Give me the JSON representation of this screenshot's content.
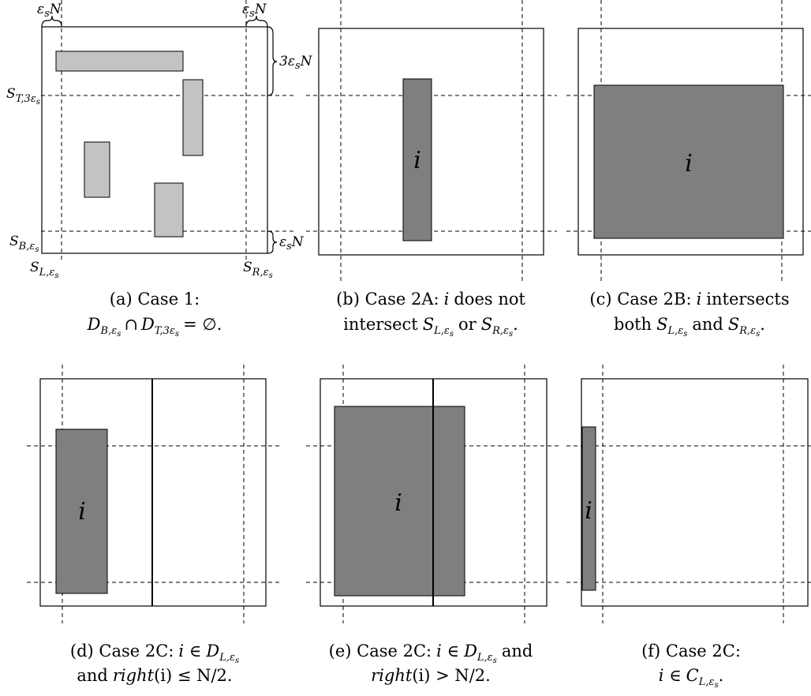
{
  "panel_a": {
    "label_eps_n_left": "ε",
    "label_eps_n_left_n": "N",
    "label_eps_n_right": "ε",
    "label_eps_n_right_n": "N",
    "label_3eps_n": "3ε",
    "label_3eps_n_n": "N",
    "label_eps_n_bottom": "ε",
    "label_eps_n_bottom_n": "N",
    "label_s_t": "S",
    "label_s_t_sub": "T,3ε",
    "label_s_b": "S",
    "label_s_b_sub": "B,ε",
    "label_s_l": "S",
    "label_s_l_sub": "L,ε",
    "label_s_r": "S",
    "label_s_r_sub": "R,ε",
    "sub_s": "s",
    "caption_line1": "(a) Case 1:",
    "caption_line2_d1": "D",
    "caption_line2_d1_sub": "B,ε",
    "caption_line2_cap": "∩",
    "caption_line2_d2": "D",
    "caption_line2_d2_sub": "T,3ε",
    "caption_line2_end": "= ∅."
  },
  "panel_b": {
    "item_label": "i",
    "caption_line1": "(b) Case 2A:",
    "caption_line1_i": "i",
    "caption_line1_end": "does not",
    "caption_line2_start": "intersect",
    "caption_line2_s1": "S",
    "caption_line2_s1_sub": "L,ε",
    "caption_line2_or": "or",
    "caption_line2_s2": "S",
    "caption_line2_s2_sub": "R,ε",
    "caption_line2_end": "."
  },
  "panel_c": {
    "item_label": "i",
    "caption_line1": "(c) Case 2B:",
    "caption_line1_i": "i",
    "caption_line1_end": "intersects",
    "caption_line2_start": "both",
    "caption_line2_s1": "S",
    "caption_line2_s1_sub": "L,ε",
    "caption_line2_and": "and",
    "caption_line2_s2": "S",
    "caption_line2_s2_sub": "R,ε",
    "caption_line2_end": "."
  },
  "panel_d": {
    "item_label": "i",
    "caption_line1": "(d) Case 2C:",
    "caption_line1_i": "i ∈",
    "caption_line1_d": "D",
    "caption_line1_d_sub": "L,ε",
    "caption_line2_start": "and",
    "caption_line2_right": "right",
    "caption_line2_end": "(i) ≤ N/2."
  },
  "panel_e": {
    "item_label": "i",
    "caption_line1": "(e) Case 2C:",
    "caption_line1_i": "i ∈",
    "caption_line1_d": "D",
    "caption_line1_d_sub": "L,ε",
    "caption_line1_and": "and",
    "caption_line2_right": "right",
    "caption_line2_end": "(i) > N/2."
  },
  "panel_f": {
    "item_label": "i",
    "caption_line1": "(f) Case 2C:",
    "caption_line2_i": "i ∈",
    "caption_line2_c": "C",
    "caption_line2_c_sub": "L,ε",
    "caption_line2_end": "."
  }
}
